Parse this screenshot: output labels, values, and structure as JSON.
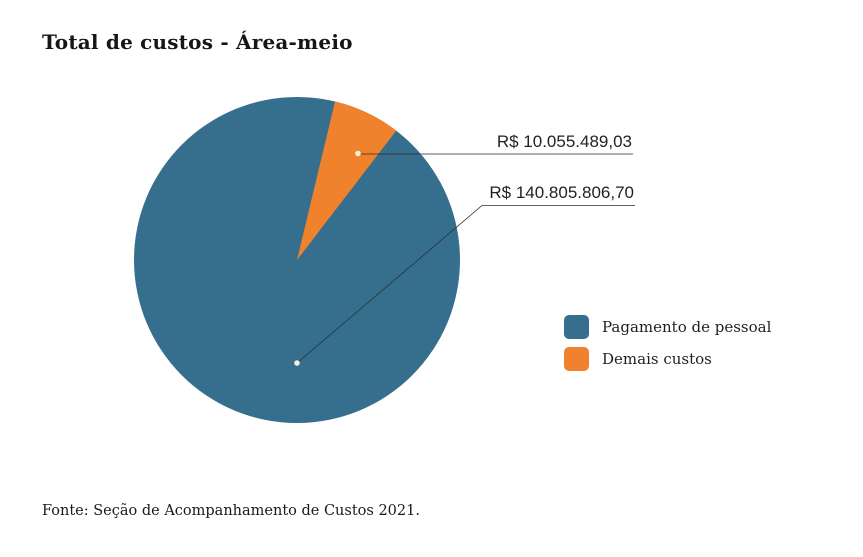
{
  "title": "Total de custos - Área-meio",
  "footer": {
    "source": "Fonte: Seção de Acompanhamento de Custos 2021."
  },
  "colors": {
    "background": "#ffffff",
    "callout_line": "#2e2e2e",
    "callout_dot": "#f7efd9",
    "text": "#222222"
  },
  "chart_data": {
    "type": "pie",
    "title": "Total de custos - Área-meio",
    "categories": [
      "Pagamento de pessoal",
      "Demais custos"
    ],
    "values": [
      140805806.7,
      10055489.03
    ],
    "slices": [
      {
        "label": "Pagamento de pessoal",
        "value": 140805806.7,
        "value_label": "R$ 140.805.806,70",
        "color": "#356F8D",
        "percent": 93.3
      },
      {
        "label": "Demais custos",
        "value": 10055489.03,
        "value_label": "R$ 10.055.489,03",
        "color": "#F0822D",
        "percent": 6.7
      }
    ],
    "legend_position": "right",
    "annotations": [
      "R$ 10.055.489,03",
      "R$ 140.805.806,70"
    ],
    "source": "Fonte: Seção de Acompanhamento de Custos 2021."
  }
}
